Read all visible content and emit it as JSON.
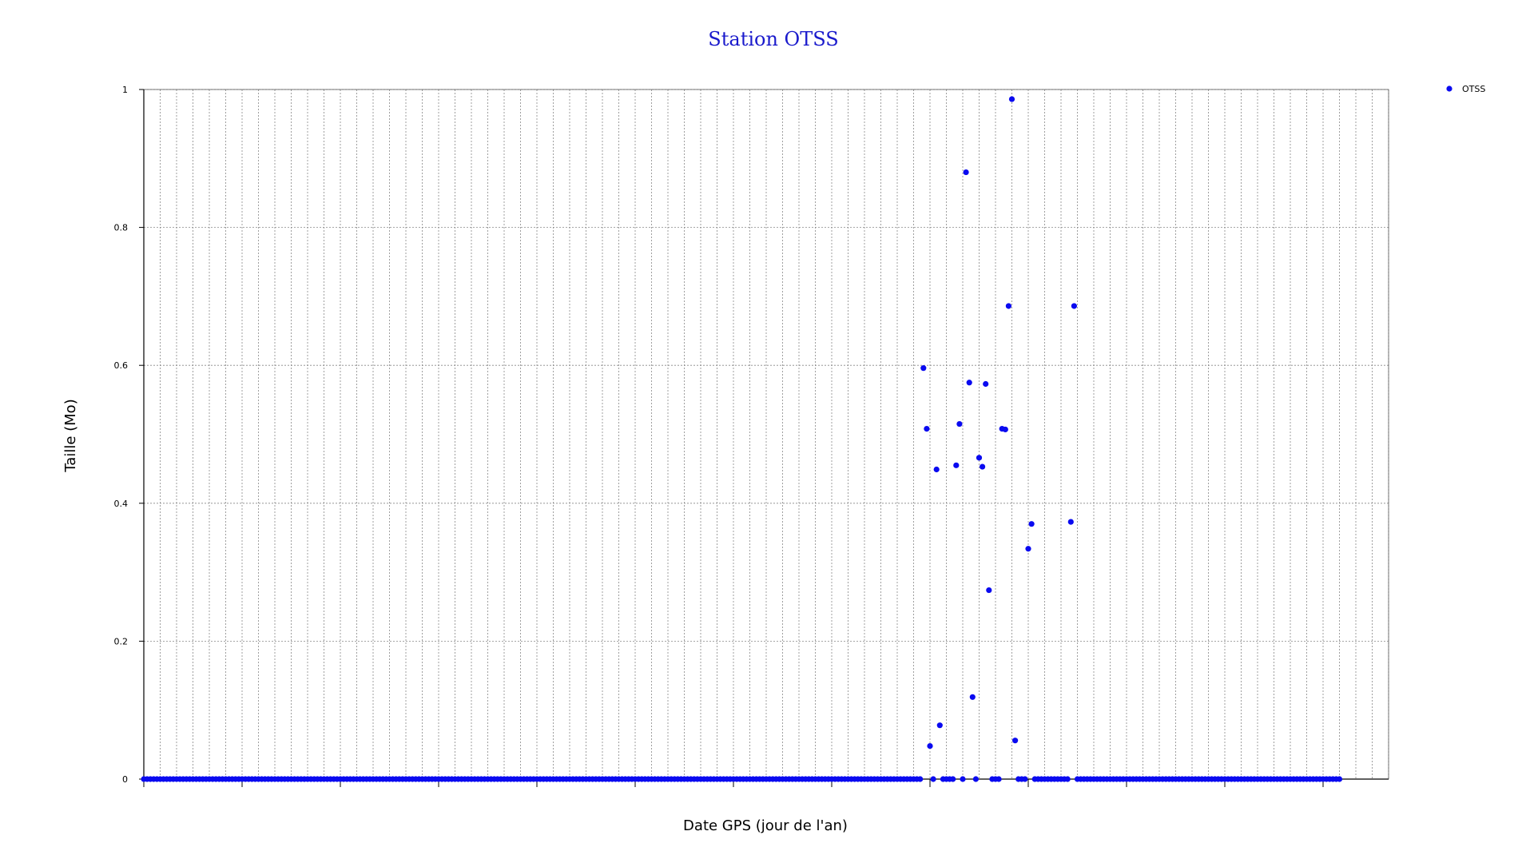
{
  "chart_data": {
    "type": "scatter",
    "title": "Station OTSS",
    "xlabel": "Date GPS (jour de l'an)",
    "ylabel": "Taille (Mo)",
    "xlim": [
      0,
      380
    ],
    "ylim": [
      0,
      1
    ],
    "yticks": [
      "0",
      "0.2",
      "0.4",
      "0.6",
      "0.8",
      "1"
    ],
    "grid": true,
    "legend_position": "top-right",
    "colors": {
      "series": "#0a0af0",
      "title": "#1a1acc",
      "grid": "#888888",
      "axis": "#000000"
    },
    "series": [
      {
        "name": "OTSS",
        "points": [
          {
            "x": 238,
            "y": 0.596
          },
          {
            "x": 239,
            "y": 0.508
          },
          {
            "x": 240,
            "y": 0.048
          },
          {
            "x": 241,
            "y": 0.0
          },
          {
            "x": 242,
            "y": 0.449
          },
          {
            "x": 243,
            "y": 0.078
          },
          {
            "x": 244,
            "y": 0.0
          },
          {
            "x": 245,
            "y": 0.0
          },
          {
            "x": 246,
            "y": 0.0
          },
          {
            "x": 247,
            "y": 0.0
          },
          {
            "x": 248,
            "y": 0.455
          },
          {
            "x": 249,
            "y": 0.515
          },
          {
            "x": 250,
            "y": 0.0
          },
          {
            "x": 251,
            "y": 0.88
          },
          {
            "x": 252,
            "y": 0.575
          },
          {
            "x": 253,
            "y": 0.119
          },
          {
            "x": 254,
            "y": 0.0
          },
          {
            "x": 255,
            "y": 0.466
          },
          {
            "x": 256,
            "y": 0.453
          },
          {
            "x": 257,
            "y": 0.573
          },
          {
            "x": 258,
            "y": 0.274
          },
          {
            "x": 259,
            "y": 0.0
          },
          {
            "x": 260,
            "y": 0.0
          },
          {
            "x": 261,
            "y": 0.0
          },
          {
            "x": 262,
            "y": 0.508
          },
          {
            "x": 263,
            "y": 0.507
          },
          {
            "x": 264,
            "y": 0.686
          },
          {
            "x": 265,
            "y": 0.986
          },
          {
            "x": 266,
            "y": 0.056
          },
          {
            "x": 267,
            "y": 0.0
          },
          {
            "x": 268,
            "y": 0.0
          },
          {
            "x": 269,
            "y": 0.0
          },
          {
            "x": 270,
            "y": 0.334
          },
          {
            "x": 271,
            "y": 0.37
          },
          {
            "x": 283,
            "y": 0.373
          },
          {
            "x": 284,
            "y": 0.686
          }
        ],
        "zero_ranges": [
          [
            0,
            237
          ],
          [
            272,
            282
          ],
          [
            285,
            365
          ]
        ]
      }
    ]
  }
}
